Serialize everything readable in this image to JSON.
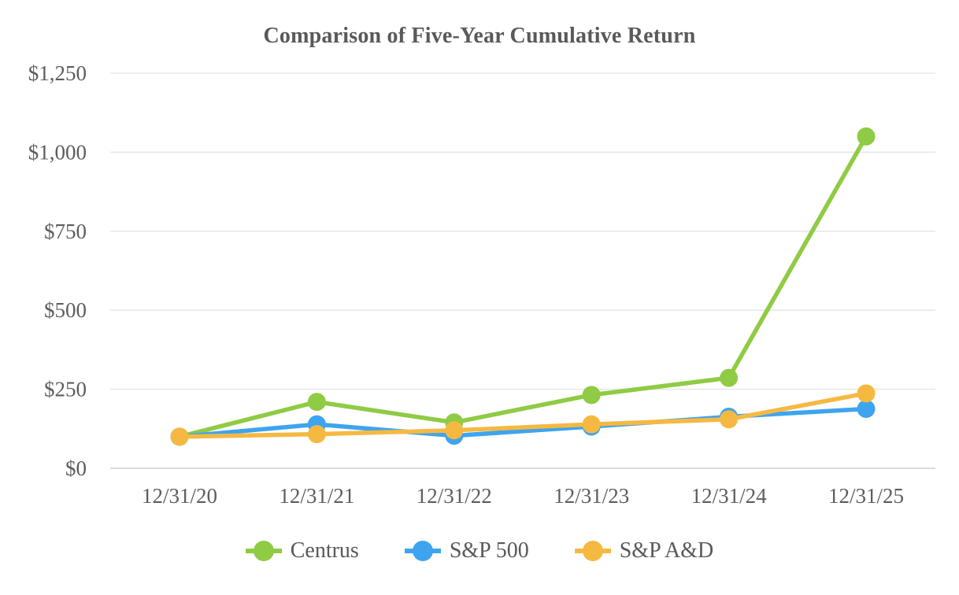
{
  "page": {
    "background": "#ffffff"
  },
  "chart_data": {
    "type": "line",
    "title": "Comparison of Five-Year Cumulative Return",
    "xlabel": "",
    "ylabel": "",
    "x_labels": [
      "12/31/20",
      "12/31/21",
      "12/31/22",
      "12/31/23",
      "12/31/24",
      "12/31/25"
    ],
    "ylim": [
      0,
      1250
    ],
    "y_ticks": [
      {
        "value": 1250,
        "label": "$1,250"
      },
      {
        "value": 1000,
        "label": "$1,000"
      },
      {
        "value": 750,
        "label": "$750"
      },
      {
        "value": 500,
        "label": "$500"
      },
      {
        "value": 250,
        "label": "$250"
      },
      {
        "value": 0,
        "label": "$0"
      }
    ],
    "grid": "horizontal",
    "legend_position": "bottom",
    "series": [
      {
        "name": "Centrus",
        "color": "#8FCB44",
        "values": [
          100,
          210,
          145,
          232,
          286,
          1050
        ]
      },
      {
        "name": "S&P 500",
        "color": "#3EA4F0",
        "values": [
          100,
          139,
          103,
          132,
          163,
          188
        ]
      },
      {
        "name": "S&P A&D",
        "color": "#F5B942",
        "values": [
          100,
          108,
          120,
          139,
          155,
          237
        ]
      }
    ],
    "colors": {
      "gridline": "#e8e8e8",
      "zero_line": "#dcdcdc",
      "text": "#5d5d5d",
      "title_text": "#595959"
    }
  }
}
